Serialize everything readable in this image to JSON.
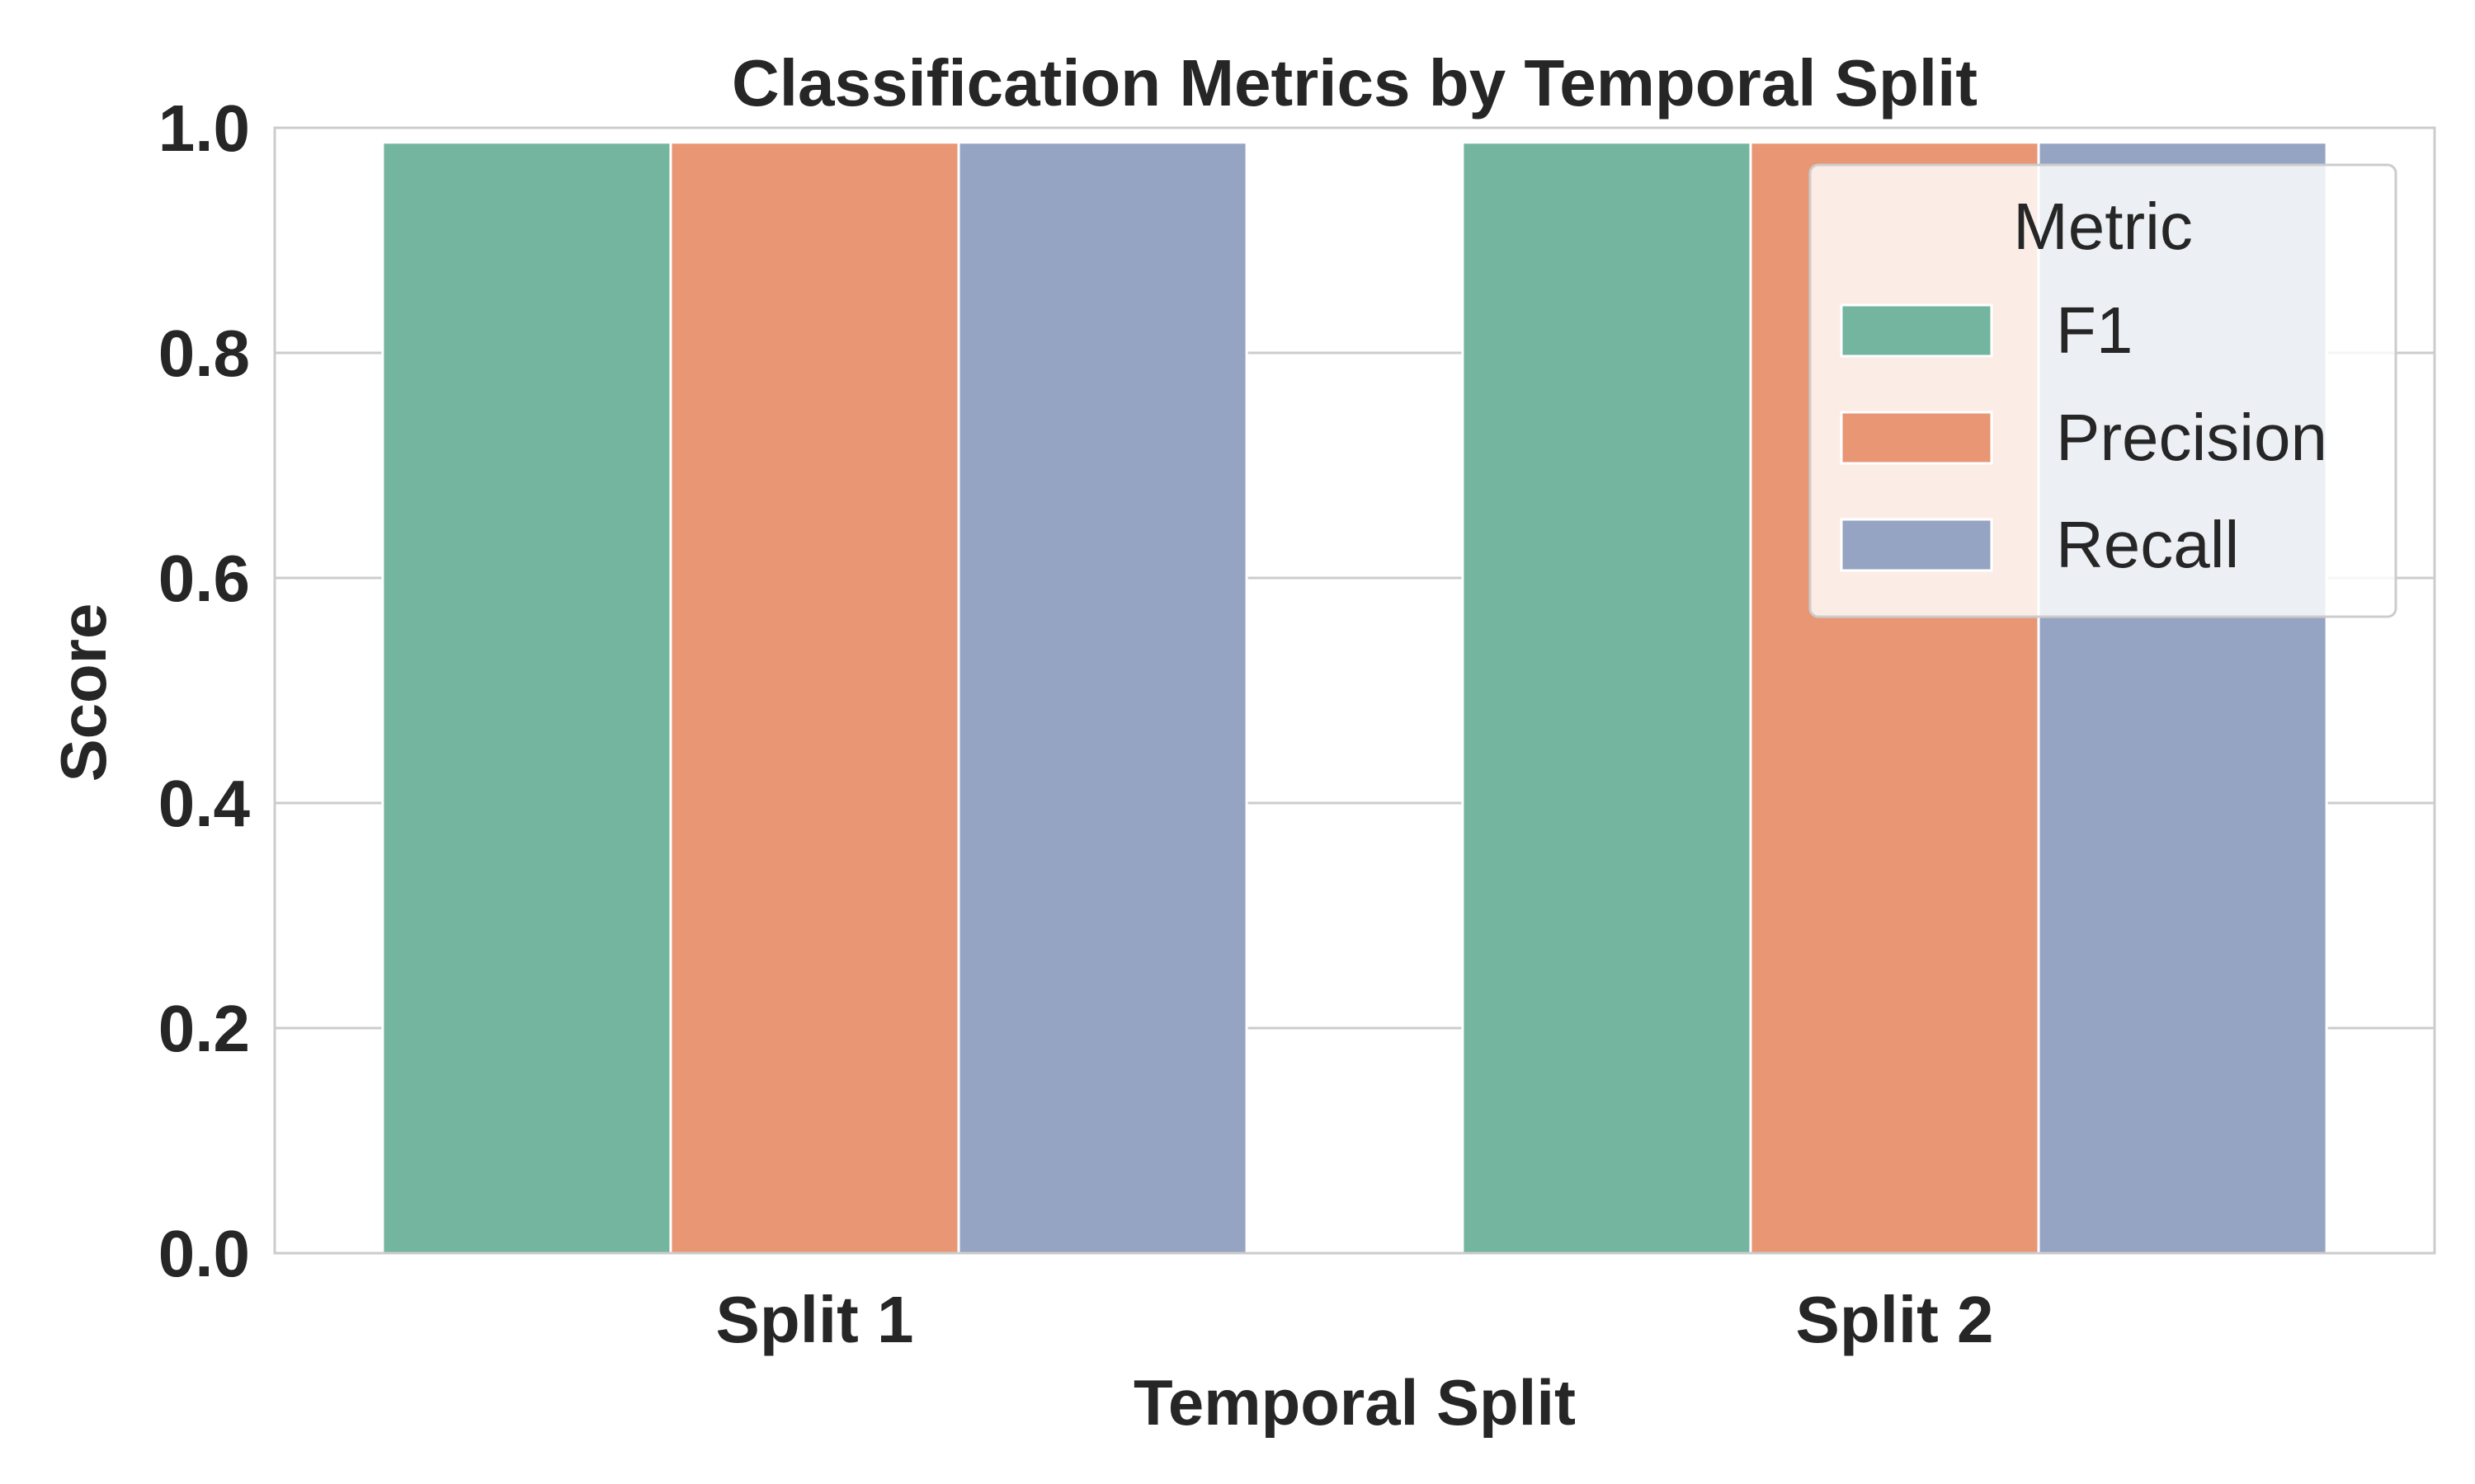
{
  "chart_data": {
    "type": "bar",
    "title": "Classification Metrics by Temporal Split",
    "xlabel": "Temporal Split",
    "ylabel": "Score",
    "categories": [
      "Split 1",
      "Split 2"
    ],
    "series": [
      {
        "name": "F1",
        "values": [
          0.987,
          0.987
        ],
        "color": "#74b5a0"
      },
      {
        "name": "Precision",
        "values": [
          0.987,
          0.987
        ],
        "color": "#e89674"
      },
      {
        "name": "Recall",
        "values": [
          0.987,
          0.987
        ],
        "color": "#96a4c3"
      }
    ],
    "ylim": [
      0,
      1
    ],
    "yticks": [
      "0.0",
      "0.2",
      "0.4",
      "0.6",
      "0.8",
      "1.0"
    ],
    "grid": true,
    "legend": {
      "title": "Metric",
      "placement": "top-right"
    }
  }
}
